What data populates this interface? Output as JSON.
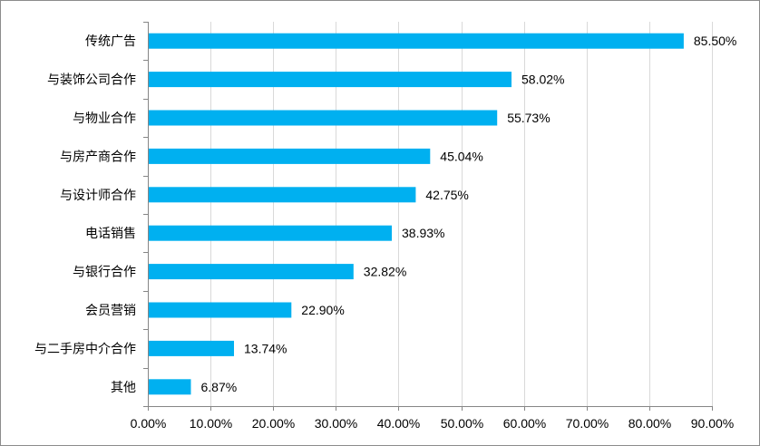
{
  "chart_data": {
    "type": "bar",
    "orientation": "horizontal",
    "categories": [
      "传统广告",
      "与装饰公司合作",
      "与物业合作",
      "与房产商合作",
      "与设计师合作",
      "电话销售",
      "与银行合作",
      "会员营销",
      "与二手房中介合作",
      "其他"
    ],
    "values": [
      85.5,
      58.02,
      55.73,
      45.04,
      42.75,
      38.93,
      32.82,
      22.9,
      13.74,
      6.87
    ],
    "value_labels": [
      "85.50%",
      "58.02%",
      "55.73%",
      "45.04%",
      "42.75%",
      "38.93%",
      "32.82%",
      "22.90%",
      "13.74%",
      "6.87%"
    ],
    "xlim": [
      0,
      90
    ],
    "x_ticks": [
      0,
      10,
      20,
      30,
      40,
      50,
      60,
      70,
      80,
      90
    ],
    "x_tick_labels": [
      "0.00%",
      "10.00%",
      "20.00%",
      "30.00%",
      "40.00%",
      "50.00%",
      "60.00%",
      "70.00%",
      "80.00%",
      "90.00%"
    ],
    "grid": "vertical",
    "bar_color": "#00B0F0",
    "grid_color": "#D9D9D9",
    "axis_color": "#868686",
    "title": "",
    "xlabel": "",
    "ylabel": ""
  }
}
